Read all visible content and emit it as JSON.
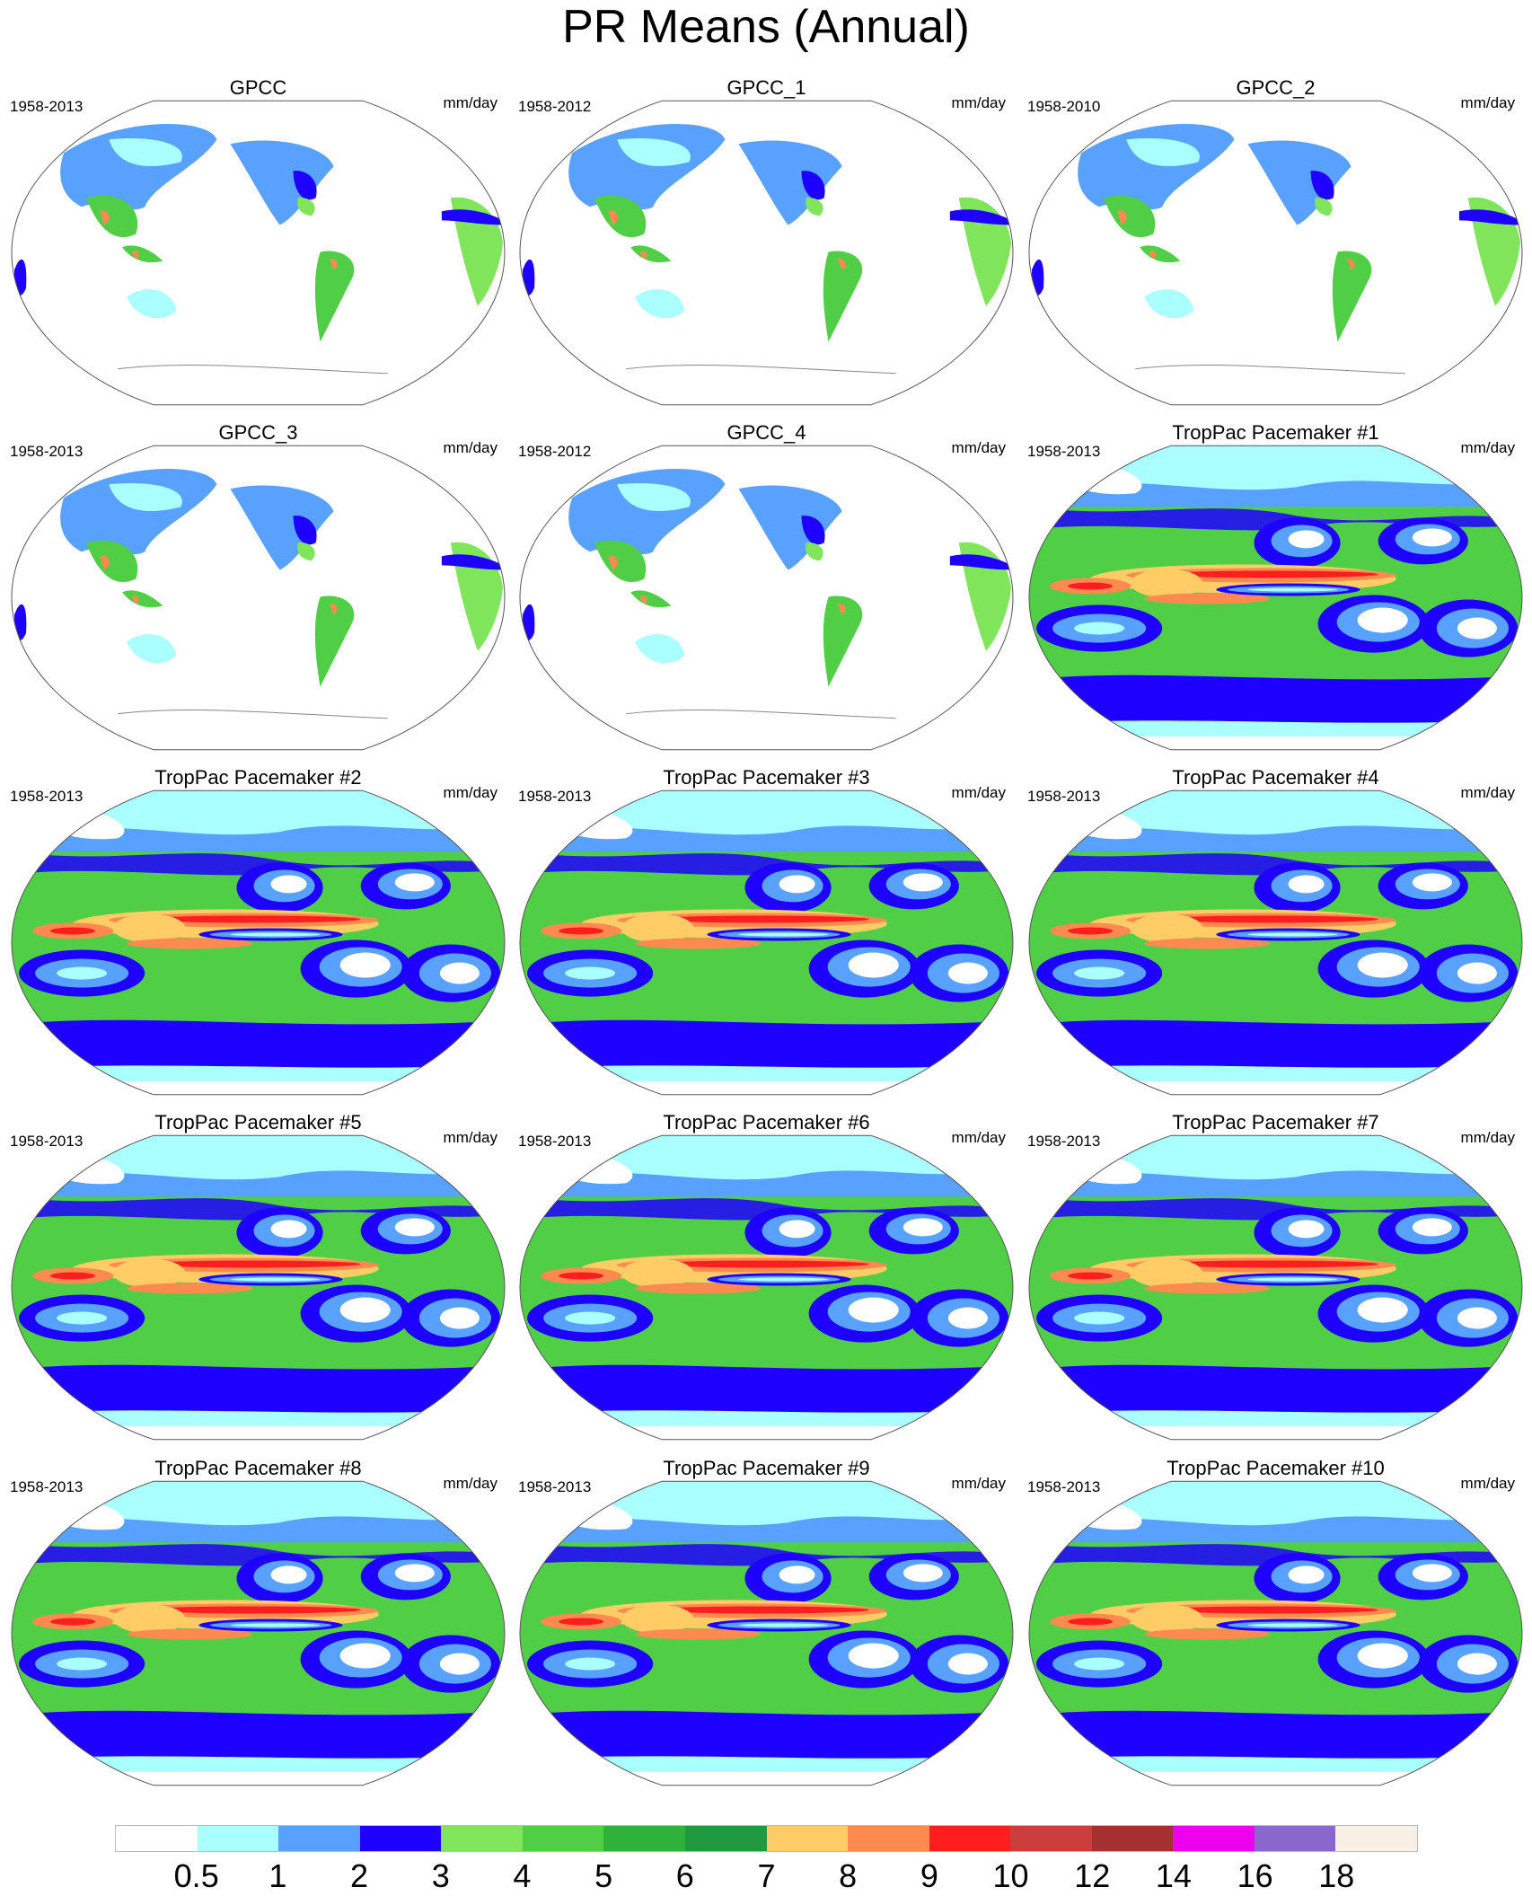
{
  "title": "PR Means (Annual)",
  "chart_data": {
    "type": "heatmap",
    "title": "PR Means (Annual)",
    "units": "mm/day",
    "panels": [
      {
        "title": "GPCC",
        "period": "1958-2013",
        "units": "mm/day",
        "kind": "observed"
      },
      {
        "title": "GPCC_1",
        "period": "1958-2012",
        "units": "mm/day",
        "kind": "observed"
      },
      {
        "title": "GPCC_2",
        "period": "1958-2010",
        "units": "mm/day",
        "kind": "observed"
      },
      {
        "title": "GPCC_3",
        "period": "1958-2013",
        "units": "mm/day",
        "kind": "observed"
      },
      {
        "title": "GPCC_4",
        "period": "1958-2012",
        "units": "mm/day",
        "kind": "observed"
      },
      {
        "title": "TropPac Pacemaker #1",
        "period": "1958-2013",
        "units": "mm/day",
        "kind": "model"
      },
      {
        "title": "TropPac Pacemaker #2",
        "period": "1958-2013",
        "units": "mm/day",
        "kind": "model"
      },
      {
        "title": "TropPac Pacemaker #3",
        "period": "1958-2013",
        "units": "mm/day",
        "kind": "model"
      },
      {
        "title": "TropPac Pacemaker #4",
        "period": "1958-2013",
        "units": "mm/day",
        "kind": "model"
      },
      {
        "title": "TropPac Pacemaker #5",
        "period": "1958-2013",
        "units": "mm/day",
        "kind": "model"
      },
      {
        "title": "TropPac Pacemaker #6",
        "period": "1958-2013",
        "units": "mm/day",
        "kind": "model"
      },
      {
        "title": "TropPac Pacemaker #7",
        "period": "1958-2013",
        "units": "mm/day",
        "kind": "model"
      },
      {
        "title": "TropPac Pacemaker #8",
        "period": "1958-2013",
        "units": "mm/day",
        "kind": "model"
      },
      {
        "title": "TropPac Pacemaker #9",
        "period": "1958-2013",
        "units": "mm/day",
        "kind": "model"
      },
      {
        "title": "TropPac Pacemaker #10",
        "period": "1958-2013",
        "units": "mm/day",
        "kind": "model"
      }
    ],
    "colorbar": {
      "levels": [
        "0.5",
        "1",
        "2",
        "3",
        "4",
        "5",
        "6",
        "7",
        "8",
        "9",
        "10",
        "12",
        "14",
        "16",
        "18"
      ],
      "colors": [
        "#ffffff",
        "#aaffff",
        "#58a1ff",
        "#1e00ff",
        "#80e55a",
        "#50cf46",
        "#30b23a",
        "#1f9a40",
        "#ffcc66",
        "#ff8a50",
        "#ff1e1e",
        "#cc3e3e",
        "#a53030",
        "#ee00ee",
        "#8a67cc",
        "#f8efe5"
      ]
    }
  }
}
